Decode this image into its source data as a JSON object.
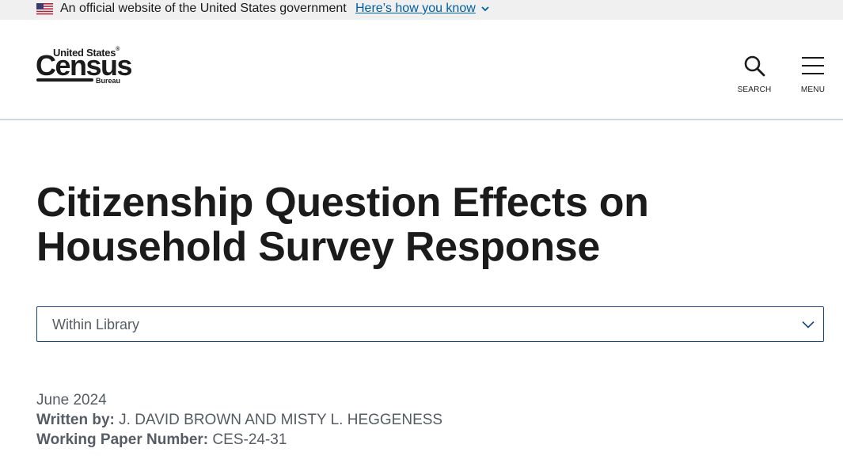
{
  "gov_banner": {
    "text": "An official website of the United States government",
    "link": "Here’s how you know"
  },
  "header": {
    "logo": {
      "top_text": "United States",
      "registered": "®",
      "main_text": "Census",
      "sub_text": "Bureau"
    },
    "search_label": "SEARCH",
    "menu_label": "MENU"
  },
  "page": {
    "title": "Citizenship Question Effects on Household Survey Response",
    "library_select": {
      "selected": "Within Library"
    },
    "meta": {
      "date": "June 2024",
      "written_by_label": "Written by:",
      "authors": "J. DAVID BROWN AND MISTY L. HEGGENESS",
      "paper_number_label": "Working Paper Number:",
      "paper_number": "CES-24-31"
    }
  },
  "colors": {
    "link": "#005ea2",
    "banner_bg": "#f0f0f0",
    "select_border": "#1a4480",
    "meta_text": "#565c65"
  },
  "icons": [
    "us-flag-icon",
    "chevron-down-icon",
    "search-icon",
    "menu-icon",
    "select-chevron-icon"
  ]
}
